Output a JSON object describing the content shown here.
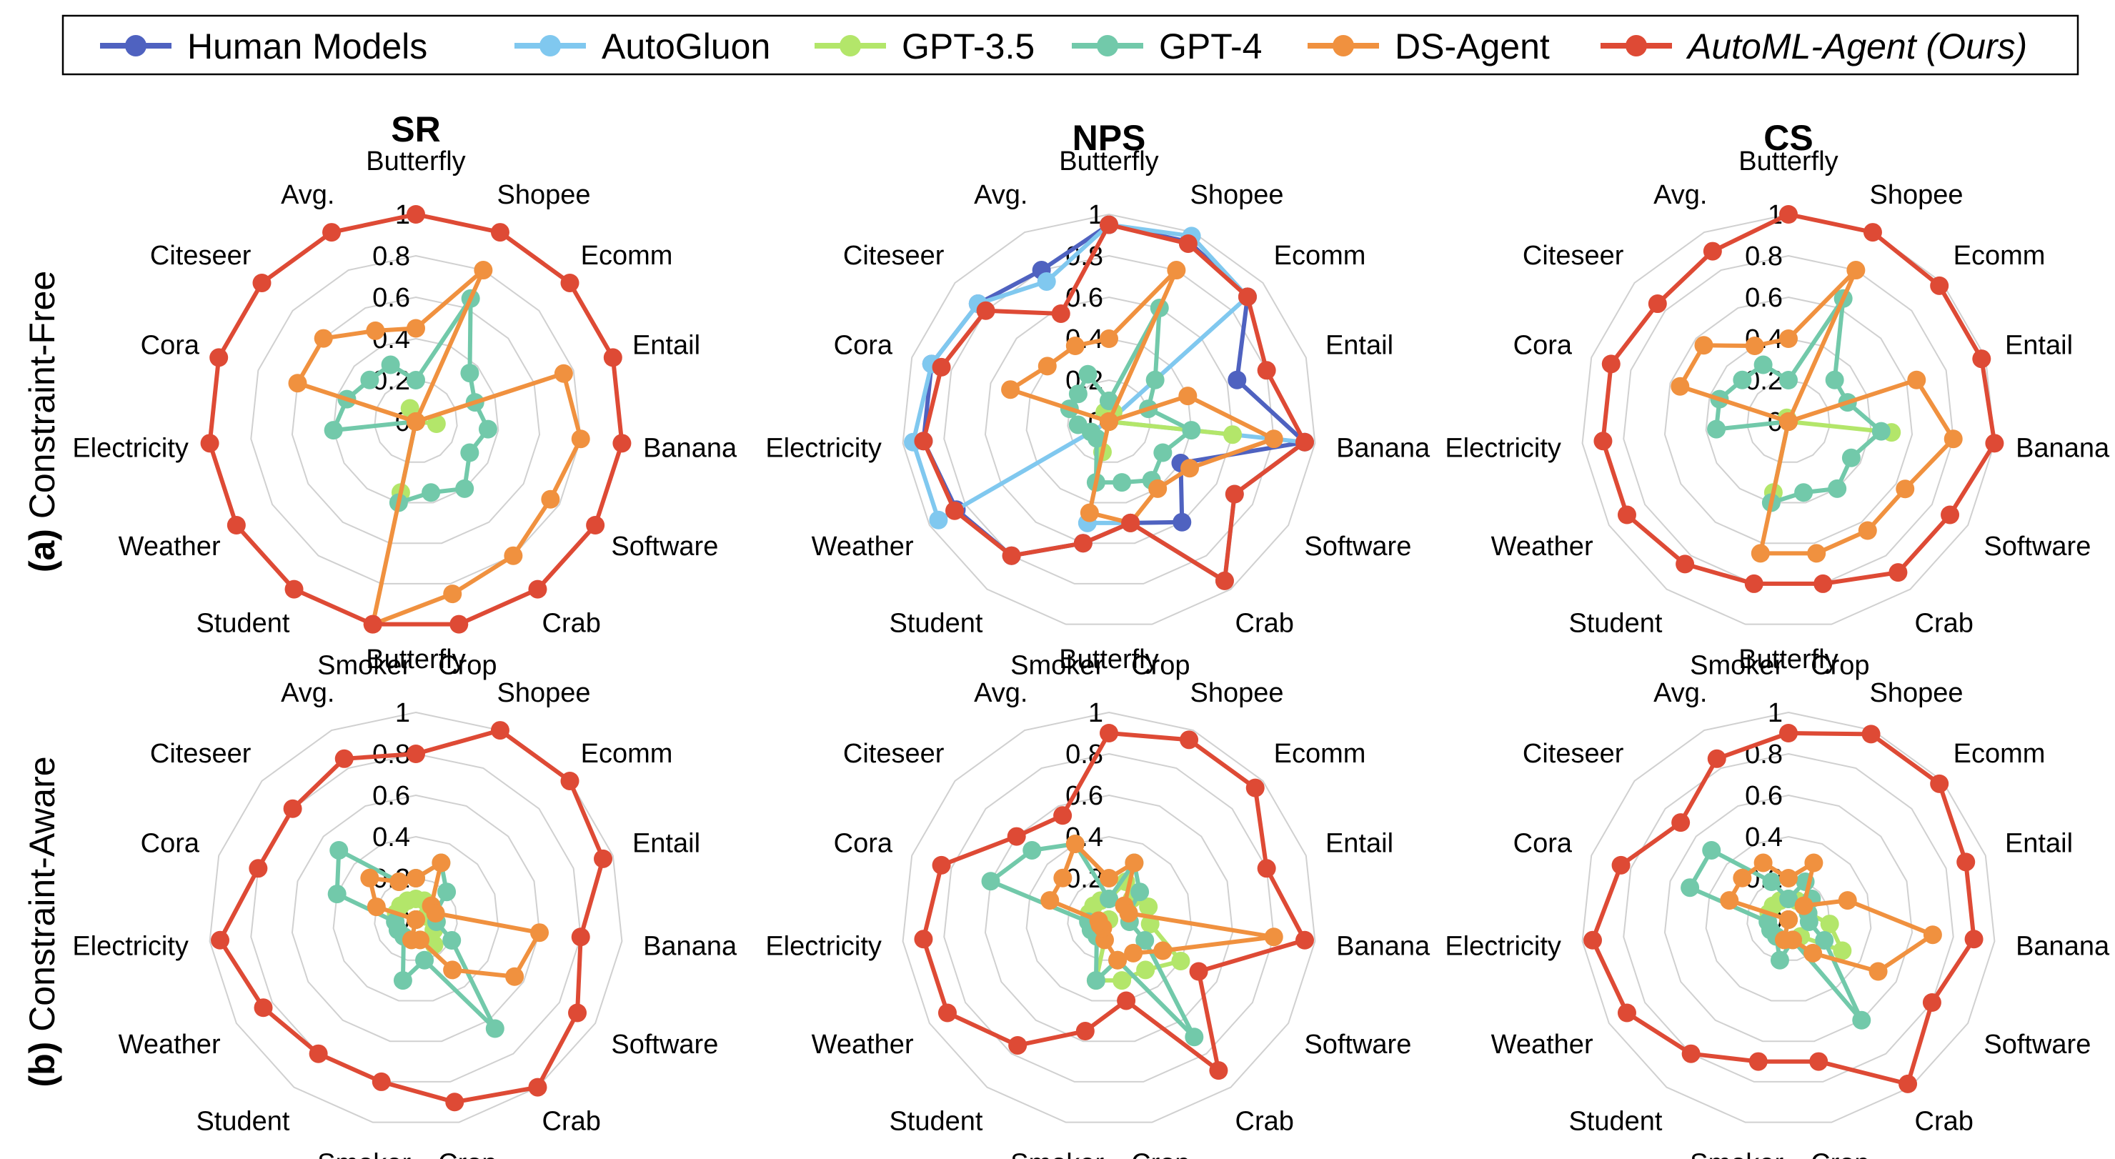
{
  "legend": [
    {
      "name": "Human Models",
      "color": "#4f62c0",
      "italic": false
    },
    {
      "name": "AutoGluon",
      "color": "#80c8ef",
      "italic": false
    },
    {
      "name": "GPT-3.5",
      "color": "#b3e66a",
      "italic": false
    },
    {
      "name": "GPT-4",
      "color": "#72c9aa",
      "italic": false
    },
    {
      "name": "DS-Agent",
      "color": "#f0913f",
      "italic": false
    },
    {
      "name": "AutoML-Agent (Ours)",
      "color": "#de4a35",
      "italic": true
    }
  ],
  "row_labels": [
    {
      "prefix": "(a)",
      "text": " Constraint-Free"
    },
    {
      "prefix": "(b)",
      "text": " Constraint-Aware"
    }
  ],
  "column_titles": [
    "SR",
    "NPS",
    "CS"
  ],
  "chart_data": {
    "type": "radar",
    "axes": [
      "Butterfly",
      "Shopee",
      "Ecomm",
      "Entail",
      "Banana",
      "Software",
      "Crab",
      "Crop",
      "Smoker",
      "Student",
      "Weather",
      "Electricity",
      "Cora",
      "Citeseer",
      "Avg."
    ],
    "rlim": [
      0,
      1
    ],
    "ticks": [
      "0",
      "0.2",
      "0.4",
      "0.6",
      "0.8",
      "1"
    ],
    "grid": true,
    "legend_position": "top",
    "panels": [
      {
        "row": "(a) Constraint-Free",
        "metric": "SR",
        "series": [
          {
            "name": "GPT-3.5",
            "values": [
              0,
              0,
              0,
              0,
              0.1,
              0,
              0,
              0,
              0.35,
              0,
              0,
              0,
              0,
              0,
              0.07
            ]
          },
          {
            "name": "GPT-4",
            "values": [
              0.2,
              0.65,
              0.35,
              0.3,
              0.35,
              0.3,
              0.4,
              0.35,
              0.4,
              0,
              0,
              0.4,
              0.35,
              0.3,
              0.3
            ]
          },
          {
            "name": "DS-Agent",
            "values": [
              0.45,
              0.8,
              0,
              0.75,
              0.8,
              0.75,
              0.8,
              0.85,
              1,
              0,
              0,
              0,
              0.6,
              0.6,
              0.48
            ]
          },
          {
            "name": "AutoML-Agent (Ours)",
            "values": [
              1,
              1,
              1,
              1,
              1,
              1,
              1,
              1,
              1,
              1,
              1,
              1,
              1,
              1,
              1
            ]
          }
        ]
      },
      {
        "row": "(a) Constraint-Free",
        "metric": "NPS",
        "series": [
          {
            "name": "Human Models",
            "values": [
              0.95,
              0.95,
              0.9,
              0.65,
              0.95,
              0.4,
              0.6,
              0.5,
              0.6,
              0.8,
              0.85,
              0.9,
              0.9,
              0.85,
              0.8
            ]
          },
          {
            "name": "AutoGluon",
            "values": [
              0.95,
              0.98,
              0.9,
              0,
              0.95,
              0.7,
              0.95,
              0.5,
              0.5,
              0,
              0.95,
              0.95,
              0.9,
              0.85,
              0.74
            ]
          },
          {
            "name": "GPT-3.5",
            "values": [
              0.1,
              0.05,
              0,
              0,
              0.6,
              0,
              0,
              0,
              0.15,
              0,
              0,
              0,
              0,
              0,
              0.05
            ]
          },
          {
            "name": "GPT-4",
            "values": [
              0.1,
              0.6,
              0.3,
              0.2,
              0.4,
              0.3,
              0.35,
              0.3,
              0.3,
              0.1,
              0.1,
              0.15,
              0.2,
              0.2,
              0.25
            ]
          },
          {
            "name": "DS-Agent",
            "values": [
              0.4,
              0.8,
              0,
              0.4,
              0.8,
              0.45,
              0.4,
              0.5,
              0.45,
              0,
              0,
              0,
              0.5,
              0.4,
              0.4
            ]
          },
          {
            "name": "AutoML-Agent (Ours)",
            "values": [
              0.95,
              0.94,
              0.9,
              0.8,
              0.95,
              0.7,
              0.95,
              0.5,
              0.6,
              0.8,
              0.86,
              0.9,
              0.85,
              0.8,
              0.57
            ]
          }
        ]
      },
      {
        "row": "(a) Constraint-Free",
        "metric": "CS",
        "series": [
          {
            "name": "GPT-3.5",
            "values": [
              0,
              0,
              0,
              0,
              0.5,
              0,
              0,
              0,
              0.35,
              0,
              0,
              0,
              0,
              0,
              0.02
            ]
          },
          {
            "name": "GPT-4",
            "values": [
              0.2,
              0.65,
              0.3,
              0.3,
              0.45,
              0.35,
              0.4,
              0.35,
              0.4,
              0,
              0,
              0.35,
              0.35,
              0.3,
              0.3
            ]
          },
          {
            "name": "DS-Agent",
            "values": [
              0.4,
              0.8,
              0,
              0.65,
              0.8,
              0.65,
              0.65,
              0.65,
              0.65,
              0,
              0,
              0,
              0.55,
              0.55,
              0.4
            ]
          },
          {
            "name": "AutoML-Agent (Ours)",
            "values": [
              1,
              1,
              0.98,
              0.98,
              1,
              0.9,
              0.9,
              0.8,
              0.8,
              0.85,
              0.9,
              0.9,
              0.9,
              0.85,
              0.9
            ]
          }
        ]
      },
      {
        "row": "(b) Constraint-Aware",
        "metric": "SR",
        "series": [
          {
            "name": "GPT-3.5",
            "values": [
              0.1,
              0.1,
              0.1,
              0.05,
              0.1,
              0.1,
              0.15,
              0.1,
              0.1,
              0,
              0,
              0,
              0.1,
              0.1,
              0.1
            ]
          },
          {
            "name": "GPT-4",
            "values": [
              0.2,
              0.3,
              0.2,
              0.1,
              0.1,
              0.2,
              0.65,
              0.2,
              0.3,
              0.1,
              0.1,
              0.1,
              0.4,
              0.5,
              0.2
            ]
          },
          {
            "name": "DS-Agent",
            "values": [
              0.2,
              0.3,
              0.1,
              0.1,
              0.6,
              0.55,
              0.3,
              0.1,
              0.1,
              0,
              0,
              0,
              0.2,
              0.3,
              0.2
            ]
          },
          {
            "name": "AutoML-Agent (Ours)",
            "values": [
              0.8,
              1,
              1,
              0.95,
              0.8,
              0.9,
              1,
              0.9,
              0.8,
              0.8,
              0.85,
              0.95,
              0.8,
              0.8,
              0.85
            ]
          }
        ]
      },
      {
        "row": "(b) Constraint-Aware",
        "metric": "NPS",
        "series": [
          {
            "name": "GPT-3.5",
            "values": [
              0.1,
              0.2,
              0.15,
              0.2,
              0.2,
              0.4,
              0.3,
              0.3,
              0.3,
              0,
              0,
              0.05,
              0.1,
              0.1,
              0.1
            ]
          },
          {
            "name": "GPT-4",
            "values": [
              0.1,
              0.3,
              0.2,
              0.1,
              0.1,
              0.2,
              0.7,
              0.2,
              0.3,
              0.1,
              0.1,
              0.1,
              0.6,
              0.5,
              0.4
            ]
          },
          {
            "name": "DS-Agent",
            "values": [
              0.2,
              0.3,
              0.1,
              0.1,
              0.8,
              0.3,
              0.2,
              0.2,
              0.1,
              0.05,
              0.05,
              0.05,
              0.3,
              0.3,
              0.4
            ]
          },
          {
            "name": "AutoML-Agent (Ours)",
            "values": [
              0.9,
              0.95,
              0.95,
              0.8,
              0.95,
              0.5,
              0.9,
              0.4,
              0.55,
              0.75,
              0.9,
              0.9,
              0.85,
              0.6,
              0.55
            ]
          }
        ]
      },
      {
        "row": "(b) Constraint-Aware",
        "metric": "CS",
        "series": [
          {
            "name": "GPT-3.5",
            "values": [
              0.1,
              0.1,
              0.1,
              0.1,
              0.2,
              0.3,
              0.1,
              0.1,
              0.1,
              0,
              0,
              0,
              0.1,
              0.1,
              0.1
            ]
          },
          {
            "name": "GPT-4",
            "values": [
              0.1,
              0.2,
              0.15,
              0.1,
              0.1,
              0.2,
              0.6,
              0.1,
              0.2,
              0.1,
              0.1,
              0.1,
              0.5,
              0.5,
              0.2
            ]
          },
          {
            "name": "DS-Agent",
            "values": [
              0.2,
              0.3,
              0.1,
              0.3,
              0.7,
              0.5,
              0.2,
              0.1,
              0.1,
              0,
              0,
              0,
              0.3,
              0.3,
              0.3
            ]
          },
          {
            "name": "AutoML-Agent (Ours)",
            "values": [
              0.9,
              0.98,
              0.98,
              0.9,
              0.9,
              0.8,
              0.98,
              0.7,
              0.7,
              0.8,
              0.9,
              0.95,
              0.85,
              0.7,
              0.85
            ]
          }
        ]
      }
    ]
  }
}
